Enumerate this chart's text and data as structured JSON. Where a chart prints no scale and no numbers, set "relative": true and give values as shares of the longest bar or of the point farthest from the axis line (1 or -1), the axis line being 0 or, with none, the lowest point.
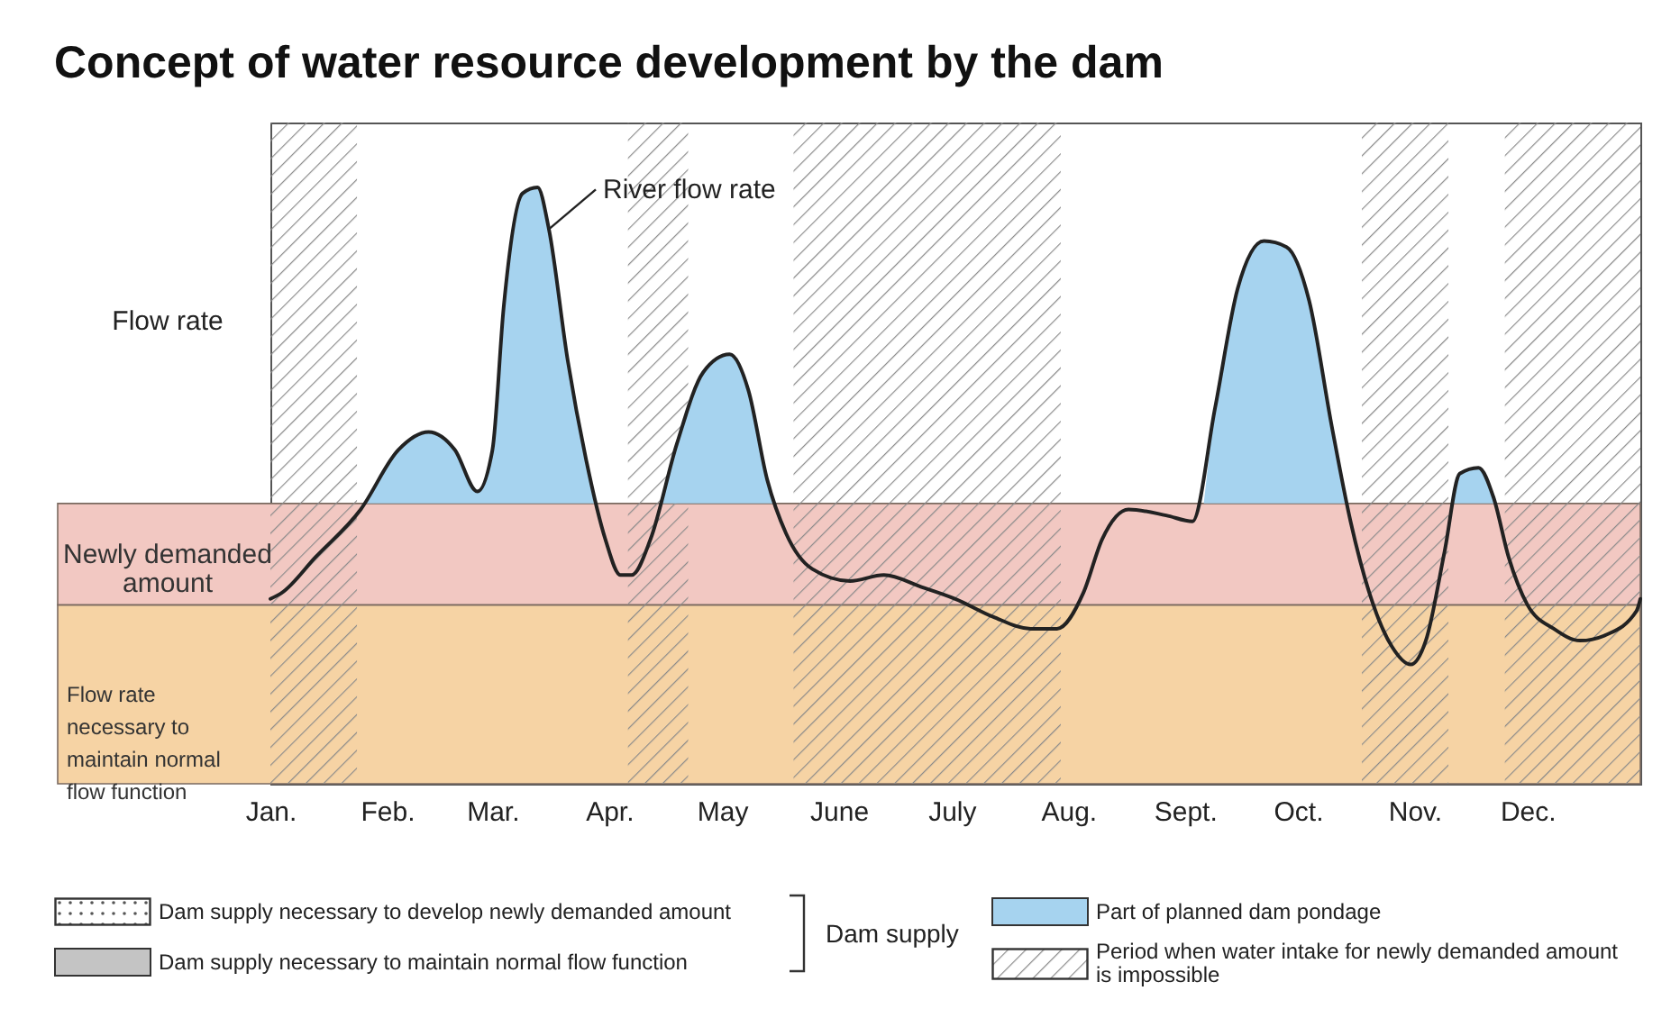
{
  "chart_data": {
    "type": "line",
    "title": "Concept of water resource development by the dam",
    "ylabel": "Flow rate",
    "relative": true,
    "legend": "bottom",
    "xlim": [
      "--01-01",
      "--12-31"
    ],
    "xticks": [
      {
        "value": "--01-01",
        "label": "Jan."
      },
      {
        "value": "--02-01",
        "label": "Feb."
      },
      {
        "value": "--03-01",
        "label": "Mar."
      },
      {
        "value": "--04-01",
        "label": "Apr."
      },
      {
        "value": "--05-01",
        "label": "May"
      },
      {
        "value": "--06-01",
        "label": "June"
      },
      {
        "value": "--07-01",
        "label": "July"
      },
      {
        "value": "--08-01",
        "label": "Aug."
      },
      {
        "value": "--09-01",
        "label": "Sept."
      },
      {
        "value": "--10-01",
        "label": "Oct."
      },
      {
        "value": "--11-01",
        "label": "Nov."
      },
      {
        "value": "--12-01",
        "label": "Dec."
      }
    ],
    "series": [
      {
        "type": "area",
        "name": "Part of planned dam pondage",
        "color": "#a6d3ef",
        "x": [
          "--01-26",
          "--02-04",
          "--02-12",
          "--02-19",
          "--02-25",
          "--03-01",
          "--03-04",
          "--03-09",
          "--03-13",
          "--03-16",
          "--03-21",
          "--03-26",
          "--03-28",
          "--04-01",
          "--04-15",
          "--04-19",
          "--04-26",
          "--05-03",
          "--05-08",
          "--05-13",
          "--05-15",
          "--06-01",
          "--09-06",
          "--09-09",
          "--09-15",
          "--09-22",
          "--09-28",
          "--10-04",
          "--10-10",
          "--10-14",
          "--11-01",
          "--11-11",
          "--11-13",
          "--11-18",
          "--11-22",
          "--11-23"
        ],
        "values": [
          0.47,
          0.56,
          0.59,
          0.56,
          0.49,
          0.56,
          0.8,
          0.99,
          1,
          0.93,
          0.71,
          0.54,
          0.47,
          null,
          0.47,
          0.57,
          0.69,
          0.72,
          0.66,
          0.51,
          0.47,
          null,
          0.47,
          0.63,
          0.83,
          0.91,
          0.9,
          0.81,
          0.6,
          0.47,
          null,
          0.47,
          0.52,
          0.53,
          0.48,
          0.47
        ]
      },
      {
        "type": "line",
        "color": "#222222",
        "x": [
          "--01-01",
          "--01-04",
          "--01-13",
          "--01-25",
          "--02-04",
          "--02-12",
          "--02-19",
          "--02-25",
          "--03-01",
          "--03-04",
          "--03-09",
          "--03-13",
          "--03-16",
          "--03-21",
          "--03-26",
          "--03-31",
          "--04-04",
          "--04-07",
          "--04-12",
          "--04-19",
          "--04-26",
          "--05-03",
          "--05-08",
          "--05-13",
          "--05-18",
          "--05-25",
          "--06-04",
          "--06-13",
          "--06-23",
          "--07-02",
          "--07-12",
          "--07-22",
          "--07-29",
          "--08-05",
          "--08-10",
          "--08-17",
          "--08-27",
          "--09-03",
          "--09-09",
          "--09-15",
          "--09-22",
          "--09-28",
          "--10-04",
          "--10-10",
          "--10-15",
          "--10-20",
          "--10-26",
          "--10-31",
          "--11-04",
          "--11-09",
          "--11-13",
          "--11-18",
          "--11-22",
          "--11-26",
          "--12-01",
          "--12-08",
          "--12-15",
          "--12-22",
          "--12-30",
          "--12-31"
        ],
        "values": [
          0.31,
          0.32,
          0.38,
          0.46,
          0.56,
          0.59,
          0.56,
          0.49,
          0.56,
          0.8,
          0.99,
          1,
          0.93,
          0.71,
          0.54,
          0.41,
          0.35,
          0.35,
          0.41,
          0.57,
          0.69,
          0.72,
          0.66,
          0.51,
          0.42,
          0.36,
          0.34,
          0.35,
          0.33,
          0.31,
          0.28,
          0.26,
          0.26,
          0.32,
          0.41,
          0.46,
          0.45,
          0.44,
          0.63,
          0.83,
          0.91,
          0.9,
          0.81,
          0.6,
          0.44,
          0.32,
          0.23,
          0.2,
          0.24,
          0.39,
          0.52,
          0.53,
          0.48,
          0.38,
          0.3,
          0.26,
          0.24,
          0.25,
          0.29,
          0.31
        ]
      }
    ],
    "bands": [
      {
        "axis": "y",
        "from": 0,
        "to": 0.3,
        "label": "Flow rate necessary to maintain normal flow function",
        "color": "#f6d3a4"
      },
      {
        "axis": "y",
        "from": 0.3,
        "to": 0.47,
        "label": "Newly demanded amount",
        "color": "#f2c8c2"
      },
      {
        "axis": "x",
        "from": "--01-01",
        "to": "--01-24",
        "label": "Period when water intake for newly demanded amount is impossible",
        "color": "#8a8a8a"
      },
      {
        "axis": "x",
        "from": "--04-06",
        "to": "--04-22",
        "color": "#8a8a8a"
      },
      {
        "axis": "x",
        "from": "--05-20",
        "to": "--07-30",
        "color": "#8a8a8a"
      },
      {
        "axis": "x",
        "from": "--10-18",
        "to": "--11-10",
        "color": "#8a8a8a"
      },
      {
        "axis": "x",
        "from": "--11-25",
        "to": "--12-31",
        "color": "#8a8a8a"
      }
    ],
    "annotations": [
      {
        "text": "River flow rate",
        "x": "--03-16",
        "y": 0.93
      },
      "Dam supply necessary to develop newly demanded amount",
      "Dam supply necessary to maintain normal flow function",
      "Dam supply"
    ]
  }
}
